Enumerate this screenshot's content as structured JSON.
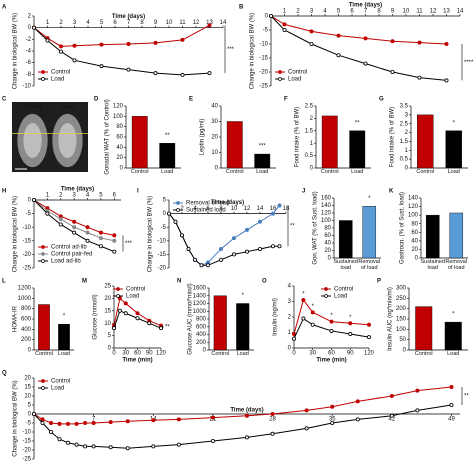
{
  "chart_data": [
    {
      "panel": "A",
      "type": "line",
      "xlabel": "Time (days)",
      "ylabel": "Change in biological BW (%)",
      "x": [
        0,
        1,
        2,
        3,
        5,
        7,
        9,
        11,
        13
      ],
      "xlim": [
        0,
        14
      ],
      "xticks": [
        1,
        2,
        3,
        4,
        5,
        6,
        7,
        8,
        9,
        10,
        11,
        12,
        13,
        14
      ],
      "ylim": [
        -10,
        2
      ],
      "yticks": [
        2,
        0,
        -2,
        -4,
        -6,
        -8,
        -10
      ],
      "legend": "lower left",
      "annotations": [
        "***"
      ],
      "series": [
        {
          "name": "Control",
          "color": "#c00000",
          "values": [
            0,
            -1.8,
            -3.2,
            -3.1,
            -2.9,
            -2.8,
            -2.6,
            -2.1,
            0.4
          ]
        },
        {
          "name": "Load",
          "color": "#000000",
          "values": [
            0,
            -2.2,
            -4.1,
            -5.6,
            -6.6,
            -7.2,
            -7.8,
            -8.1,
            -7.8
          ]
        }
      ]
    },
    {
      "panel": "B",
      "type": "line",
      "xlabel": "Time (days)",
      "ylabel": "Change in biological BW (%)",
      "x": [
        0,
        1,
        3,
        5,
        7,
        9,
        11,
        13
      ],
      "xlim": [
        0,
        14
      ],
      "xticks": [
        1,
        2,
        3,
        4,
        5,
        6,
        7,
        8,
        9,
        10,
        11,
        12,
        13,
        14
      ],
      "ylim": [
        -25,
        0
      ],
      "yticks": [
        0,
        -5,
        -10,
        -15,
        -20,
        -25
      ],
      "legend": "lower left",
      "annotations": [
        "****"
      ],
      "series": [
        {
          "name": "Control",
          "color": "#c00000",
          "values": [
            0,
            -3,
            -5.5,
            -7,
            -8,
            -9,
            -9.5,
            -10
          ]
        },
        {
          "name": "Load",
          "color": "#000000",
          "values": [
            0,
            -5,
            -10,
            -14,
            -17,
            -20,
            -22,
            -23
          ]
        }
      ]
    },
    {
      "panel": "C",
      "type": "image",
      "labels": [
        "Control",
        "Load"
      ]
    },
    {
      "panel": "D",
      "type": "bar",
      "ylabel": "Gonadal WAT (% of Control)",
      "categories": [
        "Control",
        "Load"
      ],
      "values": [
        100,
        48
      ],
      "colors": [
        "#c00000",
        "#000000"
      ],
      "ylim": [
        0,
        120
      ],
      "yticks": [
        0,
        20,
        40,
        60,
        80,
        100,
        120
      ],
      "annotations": [
        "**"
      ]
    },
    {
      "panel": "E",
      "type": "bar",
      "ylabel": "Leptin (pg/ml)",
      "categories": [
        "Control",
        "Load"
      ],
      "values": [
        30,
        9
      ],
      "colors": [
        "#c00000",
        "#000000"
      ],
      "ylim": [
        0,
        40
      ],
      "yticks": [
        0,
        10,
        20,
        30,
        40
      ],
      "annotations": [
        "***"
      ]
    },
    {
      "panel": "F",
      "type": "bar",
      "ylabel": "Food intake (% of BW)",
      "categories": [
        "Control",
        "Load"
      ],
      "values": [
        2.1,
        1.5
      ],
      "colors": [
        "#c00000",
        "#000000"
      ],
      "ylim": [
        0,
        2.5
      ],
      "yticks": [
        0,
        0.5,
        1,
        1.5,
        2,
        2.5
      ],
      "annotations": [
        "**"
      ]
    },
    {
      "panel": "G",
      "type": "bar",
      "ylabel": "Food intake (% of BW)",
      "categories": [
        "Control",
        "Load"
      ],
      "values": [
        3.0,
        2.1
      ],
      "colors": [
        "#c00000",
        "#000000"
      ],
      "ylim": [
        0,
        3.5
      ],
      "yticks": [
        0,
        0.5,
        1,
        1.5,
        2,
        2.5,
        3,
        3.5
      ],
      "annotations": [
        "*"
      ]
    },
    {
      "panel": "H",
      "type": "line",
      "xlabel": "Time (days)",
      "ylabel": "Change in biological BW (%)",
      "x": [
        0,
        1,
        2,
        3,
        4,
        5,
        6
      ],
      "xlim": [
        0,
        6.5
      ],
      "xticks": [
        1,
        2,
        3,
        4,
        5,
        6
      ],
      "ylim": [
        -25,
        0
      ],
      "yticks": [
        0,
        -5,
        -10,
        -15,
        -20,
        -25
      ],
      "legend": "lower left",
      "annotations": [
        "***"
      ],
      "series": [
        {
          "name": "Control ad-lib",
          "color": "#c00000",
          "values": [
            0,
            -3,
            -6,
            -8,
            -10,
            -12,
            -13
          ]
        },
        {
          "name": "Control pair-fed",
          "color": "#888888",
          "values": [
            0,
            -4,
            -7,
            -10,
            -12,
            -14,
            -15
          ]
        },
        {
          "name": "Load ad-lib",
          "color": "#000000",
          "values": [
            0,
            -5,
            -9,
            -12,
            -15,
            -17,
            -19
          ]
        }
      ]
    },
    {
      "panel": "I",
      "type": "line",
      "xlabel": "Time (days)",
      "ylabel": "Change in biological BW (%)",
      "x": [
        0,
        1,
        2,
        3,
        4,
        5,
        6,
        8,
        10,
        12,
        14,
        16,
        17
      ],
      "xlim": [
        0,
        18
      ],
      "xticks": [
        2,
        4,
        6,
        8,
        10,
        12,
        14,
        16,
        18
      ],
      "ylim": [
        -20,
        5
      ],
      "yticks": [
        5,
        0,
        -5,
        -10,
        -15,
        -20
      ],
      "legend": "upper left",
      "annotations": [
        "**"
      ],
      "series": [
        {
          "name": "Removal of load",
          "color": "#4a7fc1",
          "values": [
            0,
            -3,
            -8,
            -13,
            -17,
            -19,
            -18,
            -13,
            -9,
            -6,
            -3,
            0,
            3
          ]
        },
        {
          "name": "Sustained load",
          "color": "#000000",
          "values": [
            0,
            -3,
            -8,
            -13,
            -17,
            -19,
            -19,
            -17,
            -15,
            -14,
            -13,
            -12,
            -12
          ]
        }
      ]
    },
    {
      "panel": "J",
      "type": "bar",
      "ylabel": "Gon. WAT (% of Sust. load)",
      "categories": [
        "Sustained load",
        "Removal of load"
      ],
      "values": [
        100,
        138
      ],
      "colors": [
        "#000000",
        "#5b9bd5"
      ],
      "ylim": [
        0,
        160
      ],
      "yticks": [
        0,
        20,
        40,
        60,
        80,
        100,
        120,
        140,
        160
      ],
      "annotations": [
        "*"
      ]
    },
    {
      "panel": "K",
      "type": "bar",
      "ylabel": "Gastrocn. (% of Sust. load)",
      "categories": [
        "Sustained load",
        "Removal of load"
      ],
      "values": [
        100,
        105
      ],
      "colors": [
        "#000000",
        "#5b9bd5"
      ],
      "ylim": [
        0,
        140
      ],
      "yticks": [
        0,
        20,
        40,
        60,
        80,
        100,
        120,
        140
      ],
      "annotations": []
    },
    {
      "panel": "L",
      "type": "bar",
      "ylabel": "HOMA-IR",
      "categories": [
        "Control",
        "Load"
      ],
      "values": [
        880,
        500
      ],
      "colors": [
        "#c00000",
        "#000000"
      ],
      "ylim": [
        0,
        1200
      ],
      "yticks": [
        0,
        200,
        400,
        600,
        800,
        1000,
        1200
      ],
      "annotations": [
        "*"
      ]
    },
    {
      "panel": "M",
      "type": "line",
      "xlabel": "Time (min)",
      "ylabel": "Glucose (mmol/l)",
      "x": [
        0,
        15,
        30,
        60,
        90,
        120
      ],
      "xlim": [
        0,
        120
      ],
      "xticks": [
        0,
        30,
        60,
        90,
        120
      ],
      "ylim": [
        0,
        25
      ],
      "yticks": [
        0,
        5,
        10,
        15,
        20,
        25
      ],
      "legend": "upper right",
      "annotations": [
        "**"
      ],
      "series": [
        {
          "name": "Control",
          "color": "#c00000",
          "values": [
            9,
            20,
            18,
            14,
            11,
            9
          ]
        },
        {
          "name": "Load",
          "color": "#000000",
          "values": [
            8,
            15,
            14,
            12,
            10,
            8
          ]
        }
      ]
    },
    {
      "panel": "N",
      "type": "bar",
      "ylabel": "Glucose AUC (mmol*min/l)",
      "categories": [
        "Control",
        "Load"
      ],
      "values": [
        1400,
        1200
      ],
      "colors": [
        "#c00000",
        "#000000"
      ],
      "ylim": [
        0,
        1600
      ],
      "yticks": [
        0,
        200,
        400,
        600,
        800,
        1000,
        1200,
        1400,
        1600
      ],
      "annotations": [
        "*"
      ]
    },
    {
      "panel": "O",
      "type": "line",
      "xlabel": "Time (min)",
      "ylabel": "Insulin (ng/ml)",
      "x": [
        0,
        15,
        30,
        60,
        90,
        120
      ],
      "xlim": [
        0,
        120
      ],
      "xticks": [
        0,
        30,
        60,
        90,
        120
      ],
      "ylim": [
        0,
        4
      ],
      "yticks": [
        0,
        1,
        2,
        3,
        4
      ],
      "legend": "upper right",
      "annotations": [
        "*",
        "*",
        "*",
        "*"
      ],
      "series": [
        {
          "name": "Control",
          "color": "#c00000",
          "values": [
            0.9,
            3.1,
            2.3,
            1.7,
            1.6,
            1.5
          ]
        },
        {
          "name": "Load",
          "color": "#000000",
          "values": [
            0.6,
            1.9,
            1.5,
            1.1,
            0.9,
            0.7
          ]
        }
      ]
    },
    {
      "panel": "P",
      "type": "bar",
      "ylabel": "Insulin AUC (ng*min/ml)",
      "categories": [
        "Control",
        "Load"
      ],
      "values": [
        210,
        135
      ],
      "colors": [
        "#c00000",
        "#000000"
      ],
      "ylim": [
        0,
        300
      ],
      "yticks": [
        0,
        50,
        100,
        150,
        200,
        250,
        300
      ],
      "annotations": [
        "*"
      ]
    },
    {
      "panel": "Q",
      "type": "line",
      "xlabel": "Time (days)",
      "ylabel": "Change in biological BW (%)",
      "x": [
        0,
        1,
        2,
        3,
        4,
        5,
        6,
        7,
        9,
        11,
        14,
        17,
        21,
        25,
        28,
        32,
        35,
        38,
        42,
        45,
        49
      ],
      "xlim": [
        0,
        50
      ],
      "xticks": [
        7,
        14,
        21,
        28,
        35,
        42,
        49
      ],
      "ylim": [
        -25,
        20
      ],
      "yticks": [
        20,
        15,
        10,
        5,
        0,
        -5,
        -10,
        -15,
        -20,
        -25
      ],
      "legend": "upper left",
      "annotations": [
        "**"
      ],
      "series": [
        {
          "name": "Control",
          "color": "#c00000",
          "values": [
            0,
            -3,
            -5,
            -5.5,
            -5.5,
            -5.5,
            -5,
            -5,
            -4.5,
            -4,
            -3.5,
            -3,
            -2,
            -1,
            0,
            2,
            4,
            7,
            10,
            13,
            15
          ]
        },
        {
          "name": "Load",
          "color": "#000000",
          "values": [
            0,
            -5,
            -10,
            -14,
            -16,
            -17,
            -18,
            -18,
            -18.5,
            -19,
            -18,
            -17,
            -15,
            -13,
            -11,
            -8,
            -5,
            -3,
            -1,
            2,
            5
          ]
        }
      ]
    }
  ]
}
